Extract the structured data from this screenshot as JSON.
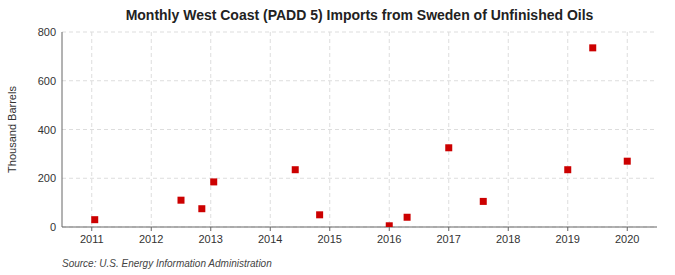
{
  "chart_data": {
    "type": "scatter",
    "title": "Monthly West Coast (PADD 5) Imports from Sweden of Unfinished Oils",
    "y_label": "Thousand Barrels",
    "source": "Source: U.S. Energy Information Administration",
    "x": [
      2011.05,
      2012.5,
      2012.85,
      2013.05,
      2014.42,
      2014.83,
      2016.0,
      2016.3,
      2017.0,
      2017.58,
      2019.0,
      2019.42,
      2020.0
    ],
    "values": [
      30,
      110,
      75,
      185,
      235,
      50,
      5,
      40,
      325,
      105,
      235,
      735,
      270
    ],
    "color": "#cc0000",
    "marker": "square",
    "xlim": [
      2010.5,
      2020.5
    ],
    "ylim": [
      0,
      800
    ],
    "xticks": [
      2011,
      2012,
      2013,
      2014,
      2015,
      2016,
      2017,
      2018,
      2019,
      2020
    ],
    "yticks": [
      0,
      200,
      400,
      600,
      800
    ],
    "grid": true
  }
}
